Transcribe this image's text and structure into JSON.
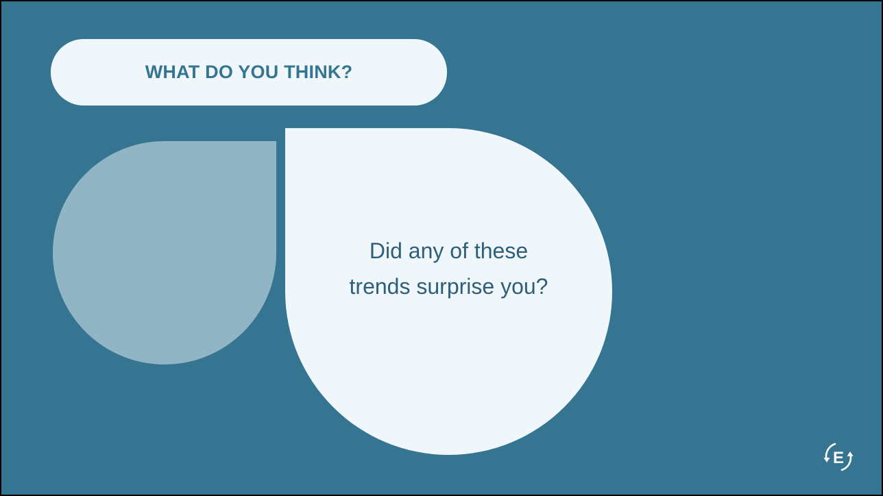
{
  "slide": {
    "title": "WHAT DO YOU THINK?",
    "question_lines": [
      "Did any of these",
      "trends surprise you?"
    ],
    "logo_letter": "E"
  },
  "colors": {
    "background": "#367591",
    "light": "#eff7fa",
    "muted_shape": "#91b5c5",
    "title_text": "#367591",
    "body_text": "#2f5f78"
  },
  "icons": {
    "logo": "circular-arrows-e-logo-icon"
  }
}
